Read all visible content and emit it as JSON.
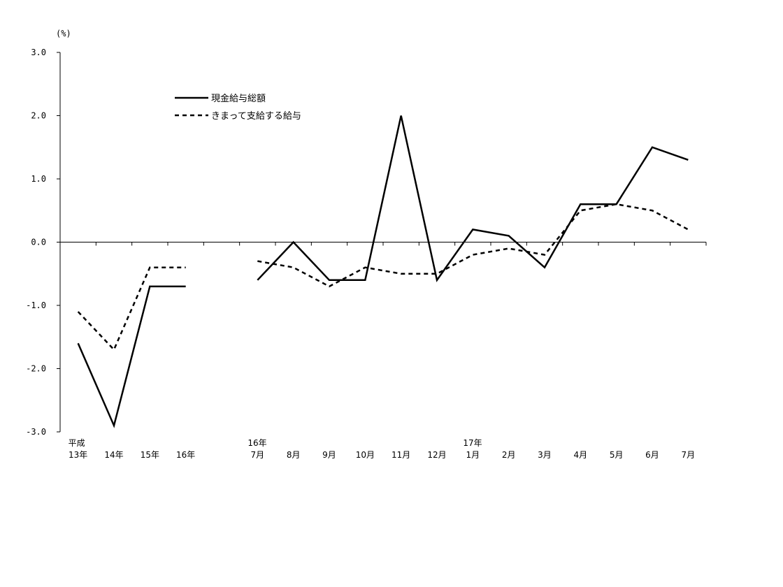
{
  "chart_data": {
    "type": "line",
    "title": "",
    "ylabel": "(%)",
    "xlabel": "",
    "ylim": [
      -3.0,
      3.0
    ],
    "yticks": [
      "3.0",
      "2.0",
      "1.0",
      "0.0",
      "-1.0",
      "-2.0",
      "-3.0"
    ],
    "grid": false,
    "legend_position": "top-left",
    "categories": [
      {
        "top": "平成",
        "bottom": "13年"
      },
      {
        "top": "",
        "bottom": "14年"
      },
      {
        "top": "",
        "bottom": "15年"
      },
      {
        "top": "",
        "bottom": "16年"
      },
      {
        "top": "",
        "bottom": ""
      },
      {
        "top": "16年",
        "bottom": "7月"
      },
      {
        "top": "",
        "bottom": "8月"
      },
      {
        "top": "",
        "bottom": "9月"
      },
      {
        "top": "",
        "bottom": "10月"
      },
      {
        "top": "",
        "bottom": "11月"
      },
      {
        "top": "",
        "bottom": "12月"
      },
      {
        "top": "17年",
        "bottom": "1月"
      },
      {
        "top": "",
        "bottom": "2月"
      },
      {
        "top": "",
        "bottom": "3月"
      },
      {
        "top": "",
        "bottom": "4月"
      },
      {
        "top": "",
        "bottom": "5月"
      },
      {
        "top": "",
        "bottom": "6月"
      },
      {
        "top": "",
        "bottom": "7月"
      }
    ],
    "series": [
      {
        "name": "現金給与総額",
        "style": "solid",
        "color": "#000000",
        "values": [
          -1.6,
          -2.9,
          -0.7,
          -0.7,
          null,
          -0.6,
          0.0,
          -0.6,
          -0.6,
          2.0,
          -0.6,
          0.2,
          0.1,
          -0.4,
          0.6,
          0.6,
          1.5,
          1.3
        ]
      },
      {
        "name": "きまって支給する給与",
        "style": "dashed",
        "color": "#000000",
        "values": [
          -1.1,
          -1.7,
          -0.4,
          -0.4,
          null,
          -0.3,
          -0.4,
          -0.7,
          -0.4,
          -0.5,
          -0.5,
          -0.2,
          -0.1,
          -0.2,
          0.5,
          0.6,
          0.5,
          0.2
        ]
      }
    ]
  }
}
